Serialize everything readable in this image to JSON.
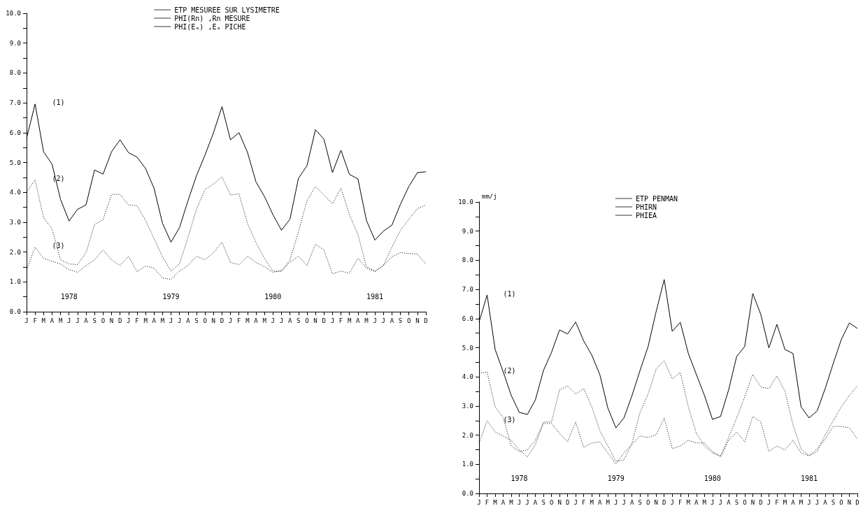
{
  "chart_data": [
    {
      "type": "line",
      "categories": [
        "J",
        "F",
        "M",
        "A",
        "M",
        "J",
        "J",
        "A",
        "S",
        "O",
        "N",
        "D",
        "J",
        "F",
        "M",
        "A",
        "M",
        "J",
        "J",
        "A",
        "S",
        "O",
        "N",
        "D",
        "J",
        "F",
        "M",
        "A",
        "M",
        "J",
        "J",
        "A",
        "S",
        "O",
        "N",
        "D",
        "J",
        "F",
        "M",
        "A",
        "M",
        "J",
        "J",
        "A",
        "S",
        "O",
        "N",
        "D"
      ],
      "series": [
        {
          "name": "ETP MESUREE SUR LYSIMETRE",
          "color": "#000000",
          "line_style": "solid",
          "values": [
            5.81,
            6.96,
            5.36,
            4.94,
            3.76,
            3.04,
            3.43,
            3.58,
            4.75,
            4.61,
            5.36,
            5.76,
            5.33,
            5.18,
            4.8,
            4.14,
            2.96,
            2.33,
            2.82,
            3.72,
            4.56,
            5.25,
            6.0,
            6.87,
            5.76,
            6.0,
            5.34,
            4.35,
            3.86,
            3.25,
            2.73,
            3.1,
            4.47,
            4.89,
            6.1,
            5.78,
            4.66,
            5.41,
            4.6,
            4.45,
            3.06,
            2.4,
            2.7,
            2.9,
            3.6,
            4.2,
            4.66,
            4.69
          ]
        },
        {
          "name": "PHI(Rn) ,Rn MESURE",
          "color": "#000000",
          "line_style": "dotted",
          "values": [
            4.0,
            4.42,
            3.15,
            2.78,
            1.74,
            1.6,
            1.58,
            1.98,
            2.92,
            3.08,
            3.93,
            3.93,
            3.58,
            3.55,
            3.06,
            2.45,
            1.84,
            1.36,
            1.6,
            2.49,
            3.44,
            4.09,
            4.28,
            4.52,
            3.91,
            3.95,
            2.96,
            2.31,
            1.79,
            1.36,
            1.34,
            1.74,
            2.68,
            3.72,
            4.2,
            3.91,
            3.62,
            4.14,
            3.25,
            2.59,
            1.51,
            1.36,
            1.55,
            2.16,
            2.73,
            3.1,
            3.45,
            3.58
          ]
        },
        {
          "name": "PHI(Eₐ) ,Eₐ PICHE",
          "color": "#000000",
          "line_style": "dotted",
          "values": [
            1.41,
            2.16,
            1.79,
            1.69,
            1.6,
            1.41,
            1.32,
            1.55,
            1.74,
            2.07,
            1.74,
            1.55,
            1.86,
            1.34,
            1.53,
            1.46,
            1.13,
            1.08,
            1.36,
            1.55,
            1.86,
            1.74,
            1.98,
            2.33,
            1.65,
            1.58,
            1.86,
            1.65,
            1.51,
            1.32,
            1.39,
            1.65,
            1.86,
            1.55,
            2.26,
            2.07,
            1.27,
            1.36,
            1.29,
            1.79,
            1.46,
            1.34,
            1.55,
            1.84,
            1.98,
            1.95,
            1.93,
            1.6
          ]
        }
      ],
      "ylim": [
        0,
        10
      ],
      "yticks": [
        {
          "value": 0,
          "label": "0.0"
        },
        {
          "value": 0.5,
          "label": null
        },
        {
          "value": 1,
          "label": "1.0"
        },
        {
          "value": 1.5,
          "label": null
        },
        {
          "value": 2,
          "label": "2.0"
        },
        {
          "value": 2.5,
          "label": null
        },
        {
          "value": 3,
          "label": "3.0"
        },
        {
          "value": 3.5,
          "label": null
        },
        {
          "value": 4,
          "label": "4.0"
        },
        {
          "value": 4.5,
          "label": null
        },
        {
          "value": 5,
          "label": "5.0"
        },
        {
          "value": 5.5,
          "label": null
        },
        {
          "value": 6,
          "label": "6.0"
        },
        {
          "value": 6.5,
          "label": null
        },
        {
          "value": 7,
          "label": "7.0"
        },
        {
          "value": 7.5,
          "label": null
        },
        {
          "value": 8,
          "label": "8.0"
        },
        {
          "value": 8.5,
          "label": null
        },
        {
          "value": 9,
          "label": "9.0"
        },
        {
          "value": 9.5,
          "label": null
        },
        {
          "value": 10,
          "label": "10.0"
        }
      ],
      "legend": "top",
      "grid": false,
      "marker": "none",
      "annotations": [
        "1978",
        "1979",
        "1980",
        "1981",
        "(1)",
        "(2)",
        "(3)"
      ]
    },
    {
      "type": "line",
      "ylabel": "mm/j",
      "categories": [
        "J",
        "F",
        "M",
        "A",
        "M",
        "J",
        "J",
        "A",
        "S",
        "O",
        "N",
        "D",
        "J",
        "F",
        "M",
        "A",
        "M",
        "J",
        "J",
        "A",
        "S",
        "O",
        "N",
        "D",
        "J",
        "F",
        "M",
        "A",
        "M",
        "J",
        "J",
        "A",
        "S",
        "O",
        "N",
        "D",
        "J",
        "F",
        "M",
        "A",
        "M",
        "J",
        "J",
        "A",
        "S",
        "O",
        "N",
        "D"
      ],
      "series": [
        {
          "name": "ETP PENMAN",
          "color": "#000000",
          "line_style": "solid",
          "values": [
            5.88,
            6.81,
            4.94,
            4.17,
            3.36,
            2.78,
            2.71,
            3.21,
            4.22,
            4.84,
            5.61,
            5.47,
            5.88,
            5.23,
            4.75,
            4.08,
            2.93,
            2.25,
            2.59,
            3.36,
            4.22,
            5.04,
            6.24,
            7.34,
            5.56,
            5.87,
            4.8,
            4.08,
            3.36,
            2.54,
            2.64,
            3.55,
            4.7,
            5.04,
            6.86,
            6.14,
            4.99,
            5.8,
            4.94,
            4.8,
            2.97,
            2.59,
            2.83,
            3.6,
            4.46,
            5.28,
            5.85,
            5.66
          ]
        },
        {
          "name": "PHIRN",
          "color": "#000000",
          "line_style": "dotted",
          "values": [
            4.12,
            4.17,
            2.97,
            2.59,
            1.63,
            1.44,
            1.49,
            1.82,
            2.45,
            2.45,
            3.55,
            3.69,
            3.41,
            3.6,
            2.97,
            2.16,
            1.63,
            1.1,
            1.15,
            1.73,
            2.78,
            3.41,
            4.27,
            4.56,
            3.93,
            4.15,
            2.97,
            2.06,
            1.63,
            1.39,
            1.29,
            1.92,
            2.59,
            3.31,
            4.08,
            3.65,
            3.6,
            4.03,
            3.5,
            2.35,
            1.53,
            1.29,
            1.44,
            2.01,
            2.49,
            2.97,
            3.36,
            3.69
          ]
        },
        {
          "name": "PHIEA",
          "color": "#000000",
          "line_style": "dotted",
          "values": [
            1.73,
            2.49,
            2.11,
            1.97,
            1.82,
            1.49,
            1.25,
            1.68,
            2.4,
            2.4,
            2.06,
            1.77,
            2.45,
            1.58,
            1.73,
            1.77,
            1.39,
            1.01,
            1.39,
            1.68,
            1.97,
            1.92,
            2.01,
            2.59,
            1.53,
            1.63,
            1.82,
            1.73,
            1.73,
            1.44,
            1.25,
            1.82,
            2.11,
            1.77,
            2.64,
            2.45,
            1.44,
            1.63,
            1.49,
            1.82,
            1.39,
            1.29,
            1.53,
            1.87,
            2.3,
            2.3,
            2.25,
            1.87
          ]
        }
      ],
      "ylim": [
        0,
        10
      ],
      "yticks": [
        {
          "value": 0,
          "label": "0.0"
        },
        {
          "value": 0.5,
          "label": null
        },
        {
          "value": 1,
          "label": "1.0"
        },
        {
          "value": 1.5,
          "label": null
        },
        {
          "value": 2,
          "label": "2.0"
        },
        {
          "value": 2.5,
          "label": null
        },
        {
          "value": 3,
          "label": "3.0"
        },
        {
          "value": 3.5,
          "label": null
        },
        {
          "value": 4,
          "label": "4.0"
        },
        {
          "value": 4.5,
          "label": null
        },
        {
          "value": 5,
          "label": "5.0"
        },
        {
          "value": 5.5,
          "label": null
        },
        {
          "value": 6,
          "label": "6.0"
        },
        {
          "value": 6.5,
          "label": null
        },
        {
          "value": 7,
          "label": "7.0"
        },
        {
          "value": 7.5,
          "label": null
        },
        {
          "value": 8,
          "label": "8.0"
        },
        {
          "value": 8.5,
          "label": null
        },
        {
          "value": 9,
          "label": "9.0"
        },
        {
          "value": 9.5,
          "label": null
        },
        {
          "value": 10,
          "label": "10.0"
        }
      ],
      "legend": "top",
      "grid": false,
      "marker": "none",
      "annotations": [
        "1978",
        "1979",
        "1980",
        "1981",
        "(1)",
        "(2)",
        "(3)"
      ]
    }
  ]
}
